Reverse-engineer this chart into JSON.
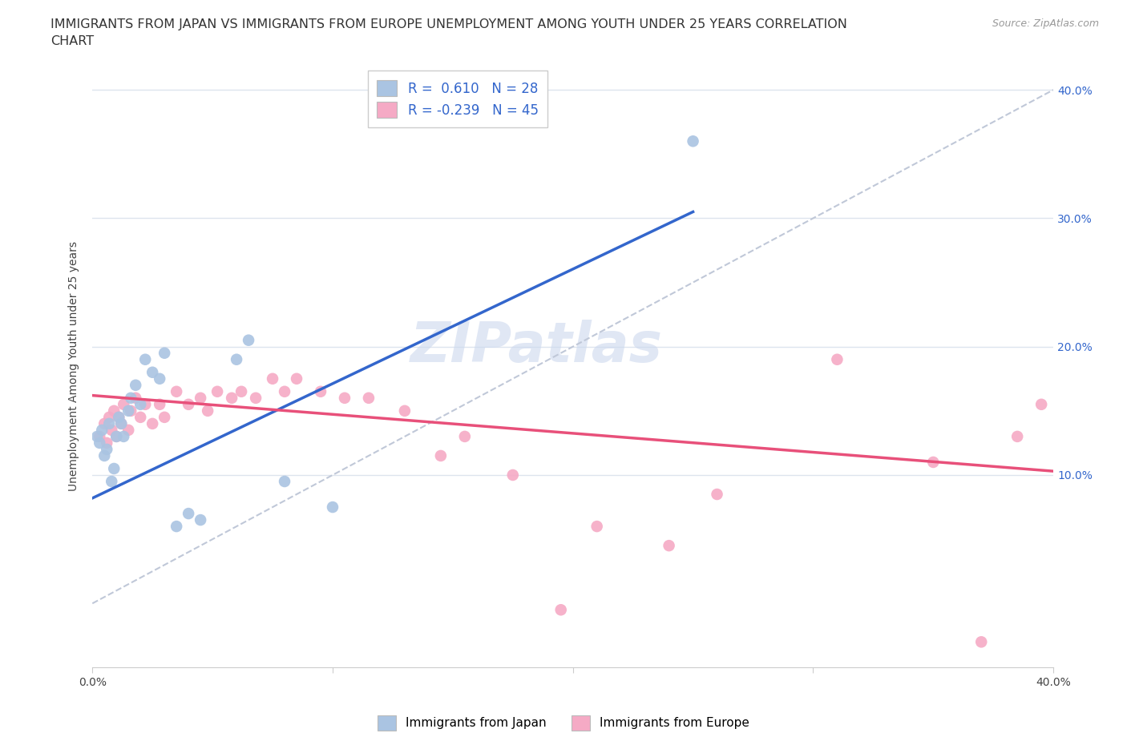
{
  "title_line1": "IMMIGRANTS FROM JAPAN VS IMMIGRANTS FROM EUROPE UNEMPLOYMENT AMONG YOUTH UNDER 25 YEARS CORRELATION",
  "title_line2": "CHART",
  "source_text": "Source: ZipAtlas.com",
  "ylabel": "Unemployment Among Youth under 25 years",
  "watermark": "ZIPatlas",
  "xlim": [
    0.0,
    0.4
  ],
  "ylim": [
    -0.05,
    0.42
  ],
  "xticks": [
    0.0,
    0.1,
    0.2,
    0.3,
    0.4
  ],
  "yticks": [
    0.1,
    0.2,
    0.3,
    0.4
  ],
  "legend_japan_label": "Immigrants from Japan",
  "legend_europe_label": "Immigrants from Europe",
  "japan_R": "0.610",
  "japan_N": "28",
  "europe_R": "-0.239",
  "europe_N": "45",
  "japan_color": "#aac4e2",
  "europe_color": "#f5aac5",
  "japan_line_color": "#3366cc",
  "europe_line_color": "#e8507a",
  "ref_line_color": "#c0c8d8",
  "grid_color": "#dde4ee",
  "background_color": "#ffffff",
  "title_fontsize": 11.5,
  "axis_label_fontsize": 10,
  "tick_fontsize": 10,
  "right_tick_color": "#3366cc",
  "japan_points_x": [
    0.002,
    0.003,
    0.004,
    0.005,
    0.006,
    0.007,
    0.008,
    0.009,
    0.01,
    0.011,
    0.012,
    0.013,
    0.015,
    0.016,
    0.018,
    0.02,
    0.022,
    0.025,
    0.028,
    0.03,
    0.035,
    0.04,
    0.045,
    0.06,
    0.065,
    0.08,
    0.1,
    0.25
  ],
  "japan_points_y": [
    0.13,
    0.125,
    0.135,
    0.115,
    0.12,
    0.14,
    0.095,
    0.105,
    0.13,
    0.145,
    0.14,
    0.13,
    0.15,
    0.16,
    0.17,
    0.155,
    0.19,
    0.18,
    0.175,
    0.195,
    0.06,
    0.07,
    0.065,
    0.19,
    0.205,
    0.095,
    0.075,
    0.36
  ],
  "europe_points_x": [
    0.003,
    0.005,
    0.006,
    0.007,
    0.008,
    0.009,
    0.01,
    0.011,
    0.012,
    0.013,
    0.015,
    0.016,
    0.018,
    0.02,
    0.022,
    0.025,
    0.028,
    0.03,
    0.035,
    0.04,
    0.045,
    0.048,
    0.052,
    0.058,
    0.062,
    0.068,
    0.075,
    0.08,
    0.085,
    0.095,
    0.105,
    0.115,
    0.13,
    0.145,
    0.155,
    0.175,
    0.195,
    0.21,
    0.24,
    0.26,
    0.31,
    0.35,
    0.37,
    0.385,
    0.395
  ],
  "europe_points_y": [
    0.13,
    0.14,
    0.125,
    0.145,
    0.135,
    0.15,
    0.13,
    0.145,
    0.14,
    0.155,
    0.135,
    0.15,
    0.16,
    0.145,
    0.155,
    0.14,
    0.155,
    0.145,
    0.165,
    0.155,
    0.16,
    0.15,
    0.165,
    0.16,
    0.165,
    0.16,
    0.175,
    0.165,
    0.175,
    0.165,
    0.16,
    0.16,
    0.15,
    0.115,
    0.13,
    0.1,
    -0.005,
    0.06,
    0.045,
    0.085,
    0.19,
    0.11,
    -0.03,
    0.13,
    0.155
  ],
  "japan_line_x0": 0.0,
  "japan_line_y0": 0.082,
  "japan_line_x1": 0.25,
  "japan_line_y1": 0.305,
  "europe_line_x0": 0.0,
  "europe_line_y0": 0.162,
  "europe_line_x1": 0.4,
  "europe_line_y1": 0.103
}
